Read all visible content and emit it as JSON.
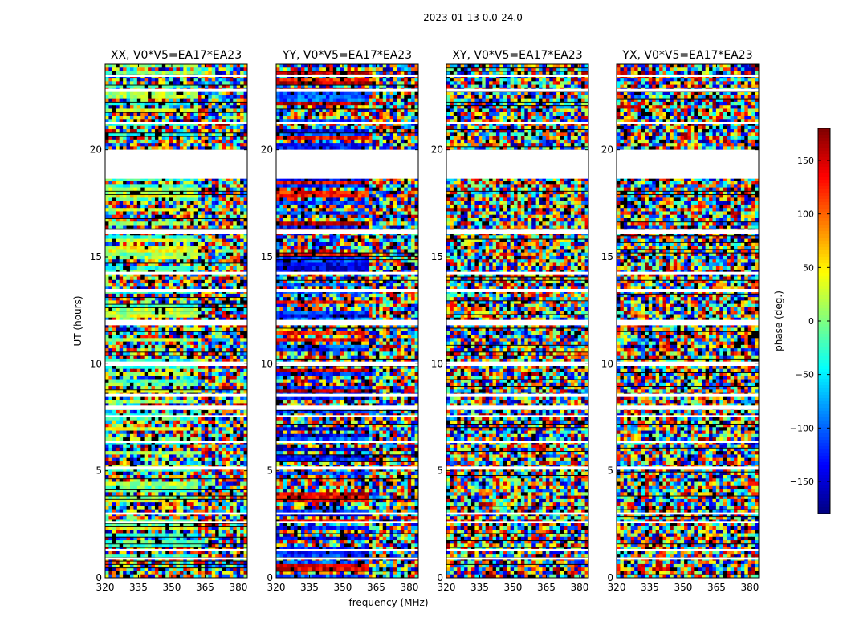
{
  "figure": {
    "suptitle": "2023-01-13 0.0-24.0"
  },
  "chart_data": {
    "type": "heatmap",
    "panels": [
      {
        "title": "XX, V0*V5=EA17*EA23",
        "style": "xx"
      },
      {
        "title": "YY, V0*V5=EA17*EA23",
        "style": "yy"
      },
      {
        "title": "XY, V0*V5=EA17*EA23",
        "style": "cross"
      },
      {
        "title": "YX, V0*V5=EA17*EA23",
        "style": "cross"
      }
    ],
    "xlabel": "frequency (MHz)",
    "ylabel": "UT (hours)",
    "xlim": [
      320,
      384
    ],
    "ylim": [
      0,
      24
    ],
    "xticks": [
      320,
      335,
      350,
      365,
      380
    ],
    "yticks": [
      0,
      5,
      10,
      15,
      20
    ],
    "value_range": [
      -180,
      180
    ],
    "colormap": "jet",
    "colorbar": {
      "label": "phase (deg.)",
      "ticks": [
        -150,
        -100,
        -50,
        0,
        50,
        100,
        150
      ],
      "tick_labels": [
        "−150",
        "−100",
        "−50",
        "0",
        "50",
        "100",
        "150"
      ]
    },
    "flagged_bands_hours": [
      [
        18.65,
        19.9
      ],
      [
        19.85,
        20.0
      ],
      [
        16.05,
        16.3
      ],
      [
        14.15,
        14.3
      ],
      [
        13.35,
        13.5
      ],
      [
        11.8,
        12.05
      ],
      [
        9.9,
        10.1
      ],
      [
        8.45,
        8.6
      ],
      [
        7.85,
        8.05
      ],
      [
        7.5,
        7.6
      ],
      [
        6.3,
        6.4
      ],
      [
        5.05,
        5.2
      ],
      [
        2.95,
        3.05
      ],
      [
        2.55,
        2.65
      ],
      [
        1.25,
        1.35
      ],
      [
        0.85,
        0.95
      ],
      [
        21.2,
        21.3
      ],
      [
        22.7,
        22.85
      ],
      [
        23.4,
        23.5
      ]
    ],
    "colors": {
      "flag_white": "#ffffff",
      "axes": "#000000"
    }
  }
}
